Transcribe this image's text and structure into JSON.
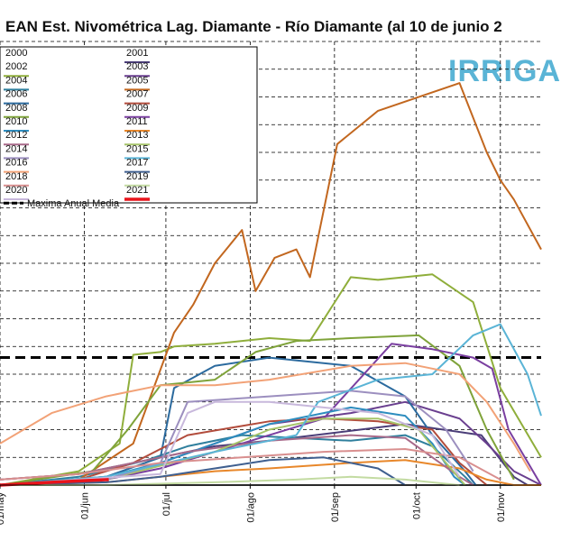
{
  "chart_data": {
    "type": "line",
    "title": "EAN Est. Nivométrica Lag.  Diamante - Río Diamante (al 10 de junio 2",
    "brand": "IRRIGA",
    "x_ticks": [
      "01/may",
      "01/jun",
      "01/jul",
      "01/ago",
      "01/sep",
      "01/oct",
      "01/nov"
    ],
    "grid": true,
    "legend_position": "top-left",
    "ylim": [
      0,
      16
    ],
    "x_day_range": [
      1,
      200
    ],
    "series": [
      {
        "name": "2000",
        "color": "#555555",
        "x": [
          1,
          40,
          80,
          120,
          160,
          200
        ],
        "y": [
          0,
          0,
          0,
          0,
          0,
          0
        ]
      },
      {
        "name": "2001",
        "color": "#4a3d78",
        "x": [
          1,
          30,
          60,
          80,
          100,
          150,
          178,
          190,
          195
        ],
        "y": [
          0.2,
          0.4,
          1.0,
          1.4,
          1.6,
          2.2,
          1.8,
          0.3,
          0
        ]
      },
      {
        "name": "2002",
        "color": "#8fae3b",
        "x": [
          1,
          30,
          45,
          50,
          60,
          65,
          80,
          100,
          115,
          130,
          140,
          160,
          175,
          185,
          200
        ],
        "y": [
          0,
          0.5,
          1.5,
          4.7,
          4.8,
          5.0,
          5.1,
          5.3,
          5.2,
          7.5,
          7.4,
          7.6,
          6.6,
          3.5,
          1.0
        ]
      },
      {
        "name": "2003",
        "color": "#6a3f8f",
        "x": [
          1,
          40,
          60,
          80,
          100,
          130,
          150,
          170,
          180,
          190,
          200
        ],
        "y": [
          0,
          0.2,
          0.8,
          1.5,
          2.2,
          2.6,
          3.0,
          2.4,
          1.5,
          0.5,
          0
        ]
      },
      {
        "name": "2004",
        "color": "#2f7f9d",
        "x": [
          1,
          30,
          55,
          70,
          90,
          110,
          130,
          150,
          160,
          172,
          175
        ],
        "y": [
          0,
          0.3,
          0.9,
          1.4,
          1.8,
          1.7,
          1.6,
          1.8,
          1.4,
          0.3,
          0
        ]
      },
      {
        "name": "2005",
        "color": "#c2671f",
        "x": [
          1,
          30,
          50,
          65,
          72,
          80,
          90,
          95,
          102,
          110,
          115,
          125,
          140,
          170,
          180,
          185,
          190,
          200
        ],
        "y": [
          0,
          0.2,
          1.5,
          5.5,
          6.5,
          8.0,
          9.2,
          7.0,
          8.2,
          8.5,
          7.5,
          12.3,
          13.5,
          14.5,
          12.0,
          11.0,
          10.3,
          8.5
        ]
      },
      {
        "name": "2006",
        "color": "#2b6a9e",
        "x": [
          1,
          40,
          60,
          65,
          80,
          100,
          130,
          150,
          160,
          172,
          176
        ],
        "y": [
          0,
          0.3,
          1.0,
          3.5,
          4.3,
          4.6,
          4.3,
          3.2,
          1.8,
          0.5,
          0
        ]
      },
      {
        "name": "2007",
        "color": "#b24c3c",
        "x": [
          1,
          30,
          50,
          70,
          100,
          120,
          140,
          160,
          170,
          180
        ],
        "y": [
          0,
          0.2,
          0.8,
          1.8,
          2.3,
          2.4,
          2.3,
          2.0,
          0.8,
          0
        ]
      },
      {
        "name": "2008",
        "color": "#7fa33a",
        "x": [
          1,
          35,
          48,
          60,
          80,
          95,
          110,
          130,
          155,
          170,
          180,
          190
        ],
        "y": [
          0,
          0.5,
          2.0,
          3.6,
          3.8,
          4.8,
          5.2,
          5.3,
          5.4,
          4.3,
          2.0,
          0.2
        ]
      },
      {
        "name": "2009",
        "color": "#7a3fa0",
        "x": [
          1,
          40,
          60,
          80,
          100,
          120,
          145,
          160,
          175,
          182,
          188,
          200
        ],
        "y": [
          0,
          0.2,
          0.6,
          1.2,
          1.8,
          2.4,
          5.1,
          4.9,
          4.6,
          4.2,
          2.0,
          0
        ]
      },
      {
        "name": "2010",
        "color": "#2e8dbf",
        "x": [
          1,
          40,
          60,
          80,
          100,
          120,
          130,
          150,
          160,
          168,
          172
        ],
        "y": [
          0,
          0.3,
          0.8,
          1.5,
          2.2,
          2.6,
          2.8,
          2.5,
          1.5,
          0.3,
          0
        ]
      },
      {
        "name": "2011",
        "color": "#e8872a",
        "x": [
          1,
          40,
          60,
          80,
          100,
          130,
          150,
          170,
          180,
          190,
          200
        ],
        "y": [
          0,
          0.1,
          0.3,
          0.5,
          0.6,
          0.8,
          0.9,
          0.6,
          0.2,
          0,
          0
        ]
      },
      {
        "name": "2012",
        "color": "#a86a8a",
        "x": [
          1,
          30,
          50,
          70,
          100,
          130,
          150,
          160,
          170,
          175
        ],
        "y": [
          0.2,
          0.4,
          0.8,
          1.2,
          1.6,
          1.8,
          1.7,
          1.0,
          0.3,
          0
        ]
      },
      {
        "name": "2013",
        "color": "#a6c46a",
        "x": [
          1,
          40,
          60,
          80,
          100,
          120,
          140,
          155,
          165,
          172
        ],
        "y": [
          0,
          0.2,
          0.7,
          1.2,
          2.0,
          2.4,
          2.4,
          2.0,
          0.8,
          0
        ]
      },
      {
        "name": "2014",
        "color": "#9c8fbf",
        "x": [
          1,
          40,
          60,
          70,
          100,
          130,
          150,
          165,
          175
        ],
        "y": [
          0,
          0.2,
          0.8,
          3.0,
          3.2,
          3.4,
          3.2,
          2.0,
          0.5
        ]
      },
      {
        "name": "2015",
        "color": "#5ab4d6",
        "x": [
          1,
          40,
          80,
          110,
          118,
          140,
          160,
          175,
          185,
          195,
          200
        ],
        "y": [
          0,
          0.3,
          1.2,
          1.8,
          3.0,
          3.8,
          4.0,
          5.4,
          5.8,
          4.0,
          2.5
        ]
      },
      {
        "name": "2016",
        "color": "#f2a277",
        "x": [
          1,
          20,
          40,
          60,
          80,
          100,
          130,
          150,
          170,
          180,
          190,
          196
        ],
        "y": [
          1.5,
          2.6,
          3.2,
          3.6,
          3.6,
          3.8,
          4.3,
          4.4,
          4.0,
          3.0,
          1.5,
          0.5
        ]
      },
      {
        "name": "2017",
        "color": "#3f5f8f",
        "x": [
          1,
          40,
          60,
          80,
          100,
          120,
          140,
          150
        ],
        "y": [
          0,
          0.1,
          0.3,
          0.6,
          0.9,
          1.0,
          0.6,
          0
        ]
      },
      {
        "name": "2018",
        "color": "#d98f8f",
        "x": [
          1,
          30,
          60,
          90,
          120,
          150,
          170,
          185
        ],
        "y": [
          0.2,
          0.4,
          0.8,
          1.0,
          1.2,
          1.3,
          1.0,
          0.2
        ]
      },
      {
        "name": "2019",
        "color": "#c3dba2",
        "x": [
          1,
          40,
          80,
          110,
          130,
          150,
          170
        ],
        "y": [
          0,
          0,
          0.1,
          0.2,
          0.3,
          0.2,
          0
        ]
      },
      {
        "name": "2020",
        "color": "#c8b8dc",
        "x": [
          1,
          30,
          60,
          70,
          80,
          100,
          120,
          140,
          160,
          170
        ],
        "y": [
          0,
          0.2,
          0.4,
          2.6,
          3.0,
          3.0,
          2.8,
          2.6,
          1.8,
          0.3
        ]
      },
      {
        "name": "2021",
        "color": "#e8141b",
        "x": [
          1,
          10,
          20,
          30,
          41
        ],
        "y": [
          0,
          0.05,
          0.1,
          0.15,
          0.2
        ]
      }
    ],
    "reference_line": {
      "name": "Maxima Anual Media",
      "y": 4.6,
      "color": "#000000",
      "style": "dashed"
    }
  }
}
